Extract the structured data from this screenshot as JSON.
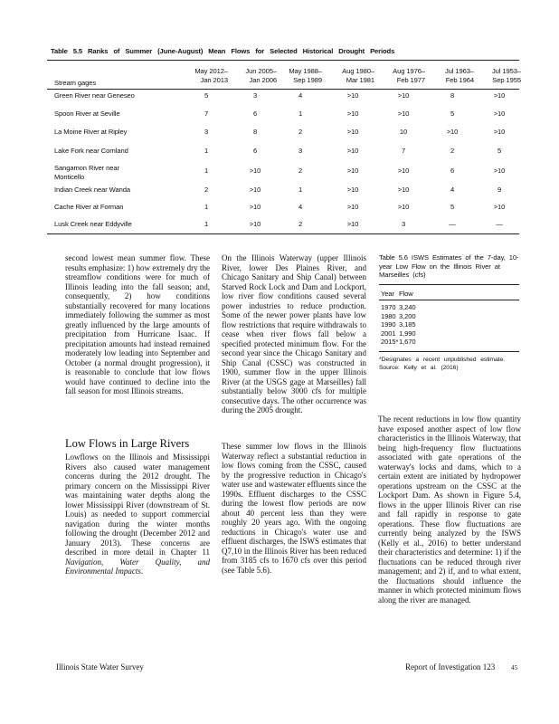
{
  "table_5_5": {
    "title": "Table 5.5 Ranks of Summer (June-August) Mean Flows for Selected Historical Drought Periods",
    "stub_header": "Stream gages",
    "columns": [
      [
        "May 2012–",
        "Jan 2013"
      ],
      [
        "Jun 2005–",
        "Jan 2006"
      ],
      [
        "May 1988–",
        "Sep 1989"
      ],
      [
        "Aug 1980–",
        "Mar 1981"
      ],
      [
        "Aug 1976–",
        "Feb 1977"
      ],
      [
        "Jul 1963–",
        "Feb 1964"
      ],
      [
        "Jul 1953–",
        "Sep 1955"
      ]
    ],
    "rows": [
      [
        "Green River near Geneseo",
        "5",
        "3",
        "4",
        ">10",
        ">10",
        "8",
        ">10"
      ],
      [
        "Spoon River at Seville",
        "7",
        "6",
        "1",
        ">10",
        ">10",
        "5",
        ">10"
      ],
      [
        "La Moine River at Ripley",
        "3",
        "8",
        "2",
        ">10",
        "10",
        ">10",
        ">10"
      ],
      [
        "Lake Fork near Cornland",
        "1",
        "6",
        "3",
        ">10",
        "7",
        "2",
        "5"
      ],
      [
        "Sangamon River near Monticello",
        "1",
        ">10",
        "2",
        ">10",
        ">10",
        "6",
        ">10"
      ],
      [
        "Indian Creek near Wanda",
        "2",
        ">10",
        "1",
        ">10",
        ">10",
        "4",
        "9"
      ],
      [
        "Cache River at Forman",
        "1",
        ">10",
        "4",
        ">10",
        ">10",
        "5",
        ">10"
      ],
      [
        "Lusk Creek near Eddyville",
        "1",
        ">10",
        "2",
        ">10",
        "3",
        "—",
        "—"
      ]
    ]
  },
  "column_1": {
    "paragraph_1": "second lowest mean summer flow. These results emphasize: 1) how extremely dry the streamflow conditions were for much of Illinois leading into the fall season; and, consequently, 2) how conditions substantially recovered for many locations immediately following the summer as most greatly influenced by the large amounts of precipitation from Hurricane Isaac. If precipitation amounts had instead remained moderately low leading into September and October (a normal drought progression), it is reasonable to conclude that low flows would have continued to decline into the fall season for most Illinois streams.",
    "heading": "Low Flows in Large Rivers",
    "paragraph_2": "Lowflows on the Illinois and Mississippi Rivers also caused water management concerns during the 2012 drought. The primary concern on the Mississippi River was maintaining water depths along the lower Mississippi River (downstream of St. Louis) as needed to support commercial navigation during the winter months following the drought (December 2012 and January 2013). These concerns are described in more detail in Chapter 11 ",
    "paragraph_2_italic": "Navigation, Water Quality, and Environmental Impacts",
    "paragraph_2_end": "."
  },
  "column_2": {
    "paragraph_1": "On the Illinois Waterway (upper Illinois River, lower Des Plaines River, and Chicago Sanitary and Ship Canal) between Starved Rock Lock and Dam and Lockport, low river flow conditions caused several power industries to reduce production. Some of the newer power plants have low flow restrictions that require withdrawals to cease when river flows fall below a specified protected minimum flow. For the second year since the Chicago Sanitary and Ship Canal (CSSC) was constructed in 1900, summer flow in the upper Illinois River (at the USGS gage at Marseilles) fall substantially below 3000 cfs for multiple consecutive days. The other occurrence was during the 2005 drought.",
    "paragraph_2": "These summer low flows in the Illinois Waterway reflect a substantial reduction in low flows coming from the CSSC, caused by the progressive reduction in Chicago's water use and wastewater effluents since the 1990s. Effluent discharges to the CSSC during the lowest flow periods are now about 40 percent less than they were roughly 20 years ago. With the ongoing reductions in Chicago's water use and effluent discharges, the ISWS estimates that Q7,10 in the Illinois River has been reduced from 3185 cfs to 1670 cfs over this period (see Table 5.6)."
  },
  "table_5_6": {
    "title": "Table 5.6 ISWS Estimates of the 7-day, 10-year Low Flow on the Illinois River at Marseilles (cfs)",
    "header": [
      "Year",
      "Flow"
    ],
    "rows": [
      [
        "1970",
        "3,240"
      ],
      [
        "1980",
        "3,200"
      ],
      [
        "1990",
        "3,185"
      ],
      [
        "2001",
        "1,990"
      ],
      [
        "2015*",
        "1,670"
      ]
    ],
    "note": "*Designates a recent unpublished estimate.",
    "source": "Source: Kelly et al. (2016)"
  },
  "column_3": {
    "paragraph_1": "The recent reductions in low flow quantity have exposed another aspect of low flow characteristics in the Illinois Waterway, that being high-frequency flow fluctuations associated with gate operations of the waterway's locks and dams, which to a certain extent are initiated by hydropower operations upstream on the CSSC at the Lockport Dam. As shown in Figure 5.4, flows in the upper Illinois River can rise and fall rapidly in response to gate operations. These flow fluctuations are currently being analyzed by the ISWS (Kelly et al., 2016) to better understand their characteristics and determine: 1) if the fluctuations can be reduced through river management; and 2) if, and to what extent, the fluctuations should influence the manner in which protected minimum flows along the river are managed."
  },
  "footer": {
    "left": "Illinois State Water Survey",
    "right": "Report of Investigation 123",
    "page": "45"
  }
}
